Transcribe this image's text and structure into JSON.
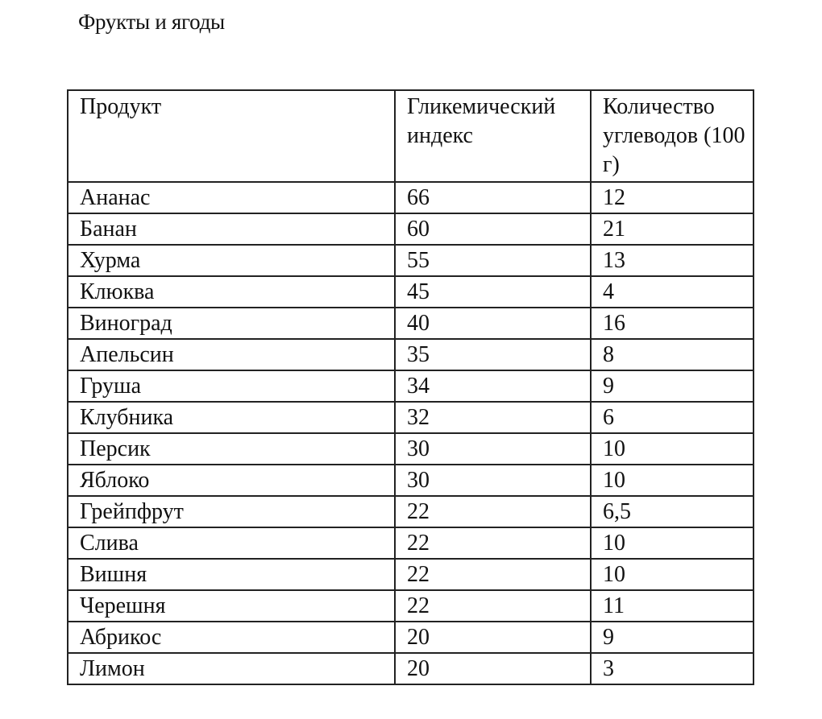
{
  "title": "Фрукты и ягоды",
  "table": {
    "headers": [
      "Продукт",
      "Гликемический индекс",
      "Количество углеводов (100 г)"
    ],
    "rows": [
      [
        "Ананас",
        "66",
        "12"
      ],
      [
        "Банан",
        "60",
        "21"
      ],
      [
        "Хурма",
        "55",
        "13"
      ],
      [
        "Клюква",
        "45",
        "4"
      ],
      [
        "Виноград",
        "40",
        "16"
      ],
      [
        "Апельсин",
        "35",
        "8"
      ],
      [
        "Груша",
        "34",
        "9"
      ],
      [
        "Клубника",
        "32",
        "6"
      ],
      [
        "Персик",
        "30",
        "10"
      ],
      [
        "Яблоко",
        "30",
        "10"
      ],
      [
        "Грейпфрут",
        "22",
        "6,5"
      ],
      [
        "Слива",
        "22",
        "10"
      ],
      [
        "Вишня",
        "22",
        "10"
      ],
      [
        "Черешня",
        "22",
        "11"
      ],
      [
        "Абрикос",
        "20",
        "9"
      ],
      [
        "Лимон",
        "20",
        "3"
      ]
    ]
  }
}
